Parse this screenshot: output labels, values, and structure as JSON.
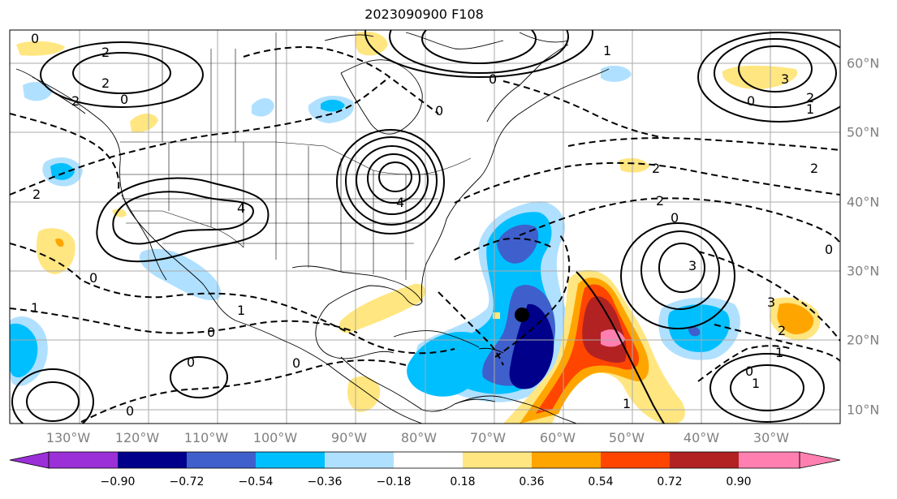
{
  "title": "2023090900 F108",
  "lon_labels": [
    "130°W",
    "120°W",
    "110°W",
    "100°W",
    "90°W",
    "80°W",
    "70°W",
    "60°W",
    "50°W",
    "40°W",
    "30°W"
  ],
  "lat_labels": [
    "60°N",
    "50°N",
    "40°N",
    "30°N",
    "20°N",
    "10°N"
  ],
  "colorbar": {
    "ticks": [
      "−0.90",
      "−0.72",
      "−0.54",
      "−0.36",
      "−0.18",
      "0.18",
      "0.36",
      "0.54",
      "0.72",
      "0.90"
    ],
    "colors": {
      "below": "#9b30d8",
      "b1": "#00008b",
      "b2": "#3f5fcc",
      "b3": "#00bfff",
      "b4": "#b0e0ff",
      "mid": "#ffffff",
      "r1": "#ffe680",
      "r2": "#ffa500",
      "r3": "#ff4500",
      "r4": "#b22222",
      "above": "#ff80b0"
    }
  },
  "storm_marker": {
    "lon": -64,
    "lat": 23.5
  },
  "contour_labels": [
    "0",
    "2",
    "2",
    "0",
    "4",
    "4",
    "0",
    "2",
    "1",
    "0",
    "0",
    "3",
    "1",
    "2",
    "0",
    "2",
    "2",
    "0",
    "0",
    "3",
    "1",
    "2",
    "0",
    "3",
    "0",
    "1",
    "0",
    "0",
    "1",
    "0",
    "1",
    "2",
    "1",
    "2"
  ]
}
